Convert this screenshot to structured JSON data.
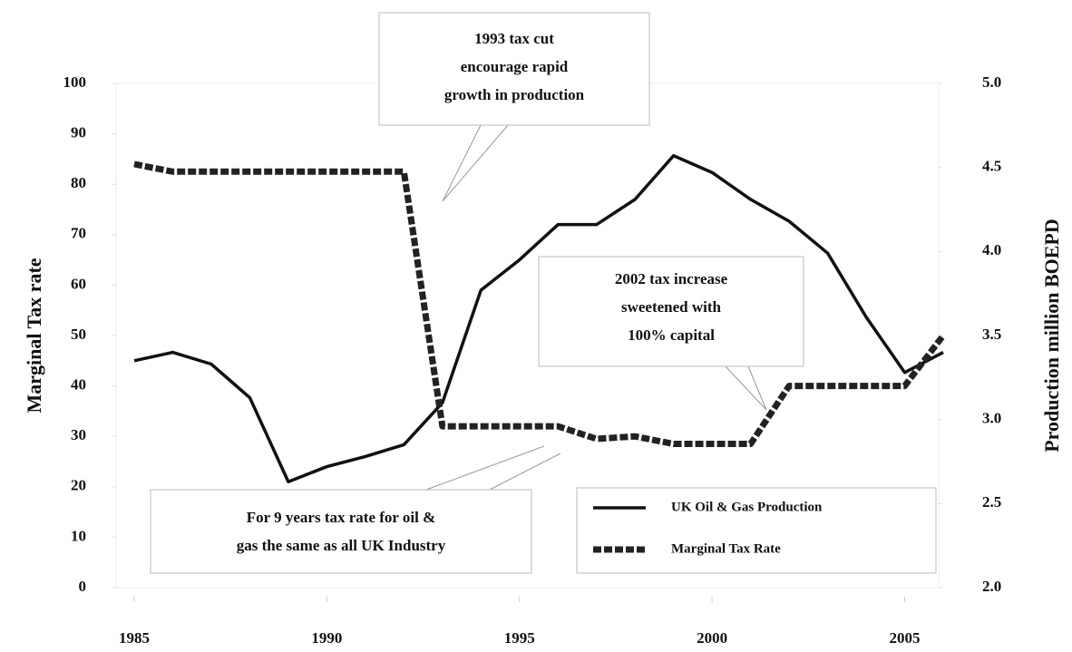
{
  "chart_data": {
    "type": "line",
    "y_label": "Marginal Tax rate",
    "y2_label": "Production million BOEPD",
    "x": [
      1985,
      1986,
      1987,
      1988,
      1989,
      1990,
      1991,
      1992,
      1993,
      1994,
      1995,
      1996,
      1997,
      1998,
      1999,
      2000,
      2001,
      2002,
      2003,
      2004,
      2005,
      2006
    ],
    "xlim": [
      1985,
      2006
    ],
    "xticks": [
      1985,
      1990,
      1995,
      2000,
      2005
    ],
    "ylim": [
      0,
      100
    ],
    "yticks": [
      0,
      10,
      20,
      30,
      40,
      50,
      60,
      70,
      80,
      90,
      100
    ],
    "y2lim": [
      2.0,
      5.0
    ],
    "y2ticks": [
      {
        "value": 2.0,
        "label": "2.0"
      },
      2.5,
      {
        "value": 3.0,
        "label": "3.0"
      },
      3.5,
      {
        "value": 4.0,
        "label": "4.0"
      },
      4.5,
      {
        "value": 5.0,
        "label": "5.0"
      }
    ],
    "series": [
      {
        "name": "UK Oil & Gas Production",
        "color": "#111111",
        "axis": "y2",
        "line_style": "solid",
        "values": [
          3.35,
          3.4,
          3.33,
          3.13,
          2.63,
          2.72,
          2.78,
          2.85,
          3.1,
          3.77,
          3.95,
          4.16,
          4.16,
          4.31,
          4.57,
          4.47,
          4.31,
          4.18,
          3.99,
          3.61,
          3.28,
          3.4
        ]
      },
      {
        "name": "Marginal Tax Rate",
        "color": "#222222",
        "axis": "y",
        "line_style": "dashed",
        "values": [
          84,
          82.5,
          82.5,
          82.5,
          82.5,
          82.5,
          82.5,
          82.5,
          32,
          32,
          32,
          32,
          29.5,
          30,
          28.5,
          28.5,
          28.5,
          40,
          40,
          40,
          40,
          50
        ]
      }
    ],
    "annotations": [
      {
        "lines": [
          "1993 tax cut",
          "encourage rapid",
          "growth in production"
        ]
      },
      {
        "lines": [
          "2002 tax increase",
          "sweetened with",
          "100% capital"
        ]
      },
      {
        "lines": [
          "For 9 years tax rate for oil &",
          "gas the same as all UK Industry"
        ]
      }
    ]
  }
}
